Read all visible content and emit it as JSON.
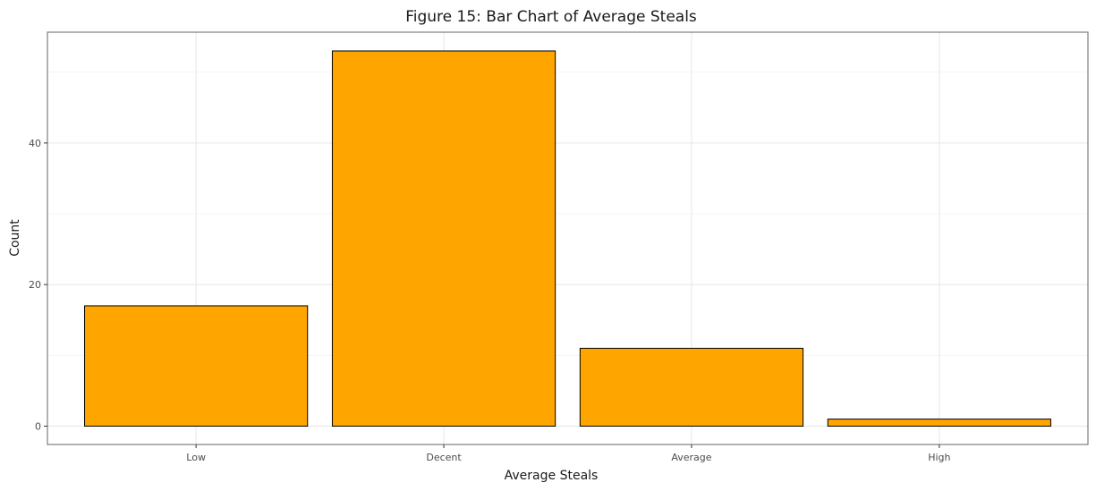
{
  "chart_data": {
    "type": "bar",
    "title": "Figure 15: Bar Chart of Average Steals",
    "xlabel": "Average Steals",
    "ylabel": "Count",
    "categories": [
      "Low",
      "Decent",
      "Average",
      "High"
    ],
    "values": [
      17,
      53,
      11,
      1
    ],
    "ylim": [
      0,
      55.65
    ],
    "yticks": [
      0,
      20,
      40
    ],
    "grid": true,
    "legend": "none",
    "colors": {
      "bar_fill": "#FFA500",
      "bar_edge": "#000000"
    }
  }
}
